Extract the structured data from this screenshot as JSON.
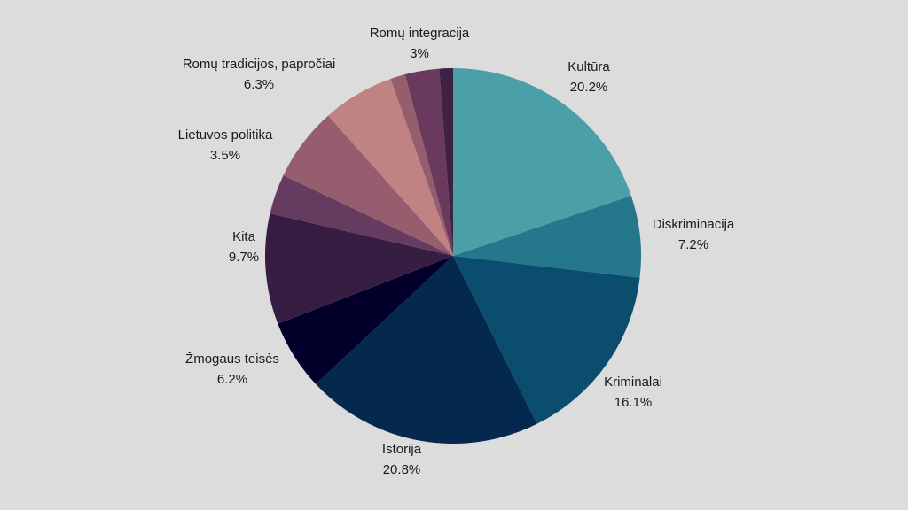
{
  "chart_data": {
    "type": "pie",
    "slices": [
      {
        "label": "Kultūra",
        "value": 20.2,
        "display": "20.2%",
        "color": "#4ba0a8"
      },
      {
        "label": "Diskriminacija",
        "value": 7.2,
        "display": "7.2%",
        "color": "#25788b"
      },
      {
        "label": "Kriminalai",
        "value": 16.1,
        "display": "16.1%",
        "color": "#0a4d6e"
      },
      {
        "label": "Istorija",
        "value": 20.8,
        "display": "20.8%",
        "color": "#05284e"
      },
      {
        "label": "Žmogaus teisės",
        "value": 6.2,
        "display": "6.2%",
        "color": "#02002a"
      },
      {
        "label": "Kita",
        "value": 9.7,
        "display": "9.7%",
        "color": "#381d43"
      },
      {
        "label": "Lietuvos politika",
        "value": 3.5,
        "display": "3.5%",
        "color": "#653c5f"
      },
      {
        "label": "",
        "value": 6.5,
        "display": "",
        "color": "#955d6e"
      },
      {
        "label": "Romų tradicijos, papročiai",
        "value": 6.3,
        "display": "6.3%",
        "color": "#c08283"
      },
      {
        "label": "",
        "value": 1.3,
        "display": "",
        "color": "#955d6e"
      },
      {
        "label": "Romų integracija",
        "value": 3.0,
        "display": "3%",
        "color": "#6a3a5e"
      },
      {
        "label": "",
        "value": 1.2,
        "display": "",
        "color": "#3e2145"
      }
    ],
    "legend": "none",
    "grid": false
  }
}
